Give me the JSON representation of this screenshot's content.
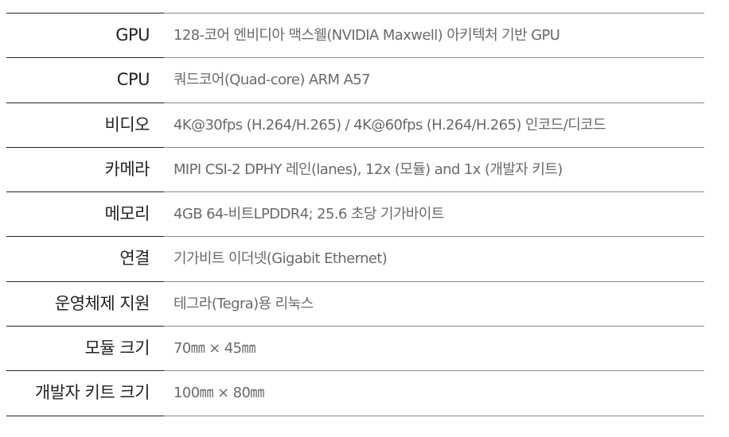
{
  "specs": [
    {
      "label": "GPU",
      "value": "128-코어 엔비디아 맥스웰(NVIDIA Maxwell) 아키텍처 기반 GPU"
    },
    {
      "label": "CPU",
      "value": "쿼드코어(Quad-core) ARM A57"
    },
    {
      "label": "비디오",
      "value": "4K@30fps (H.264/H.265) / 4K@60fps (H.264/H.265) 인코드/디코드"
    },
    {
      "label": "카메라",
      "value": "MIPI CSI-2 DPHY 레인(lanes), 12x (모듈) and 1x (개발자 키트)"
    },
    {
      "label": "메모리",
      "value": "4GB 64-비트LPDDR4; 25.6 초당 기가바이트"
    },
    {
      "label": "연결",
      "value": "기가비트 이더넷(Gigabit Ethernet)"
    },
    {
      "label": "운영체제 지원",
      "value": "테그라(Tegra)용 리눅스"
    },
    {
      "label": "모듈 크기",
      "value": "70㎜ × 45㎜"
    },
    {
      "label": "개발자 키트 크기",
      "value": "100㎜ × 80㎜"
    }
  ]
}
